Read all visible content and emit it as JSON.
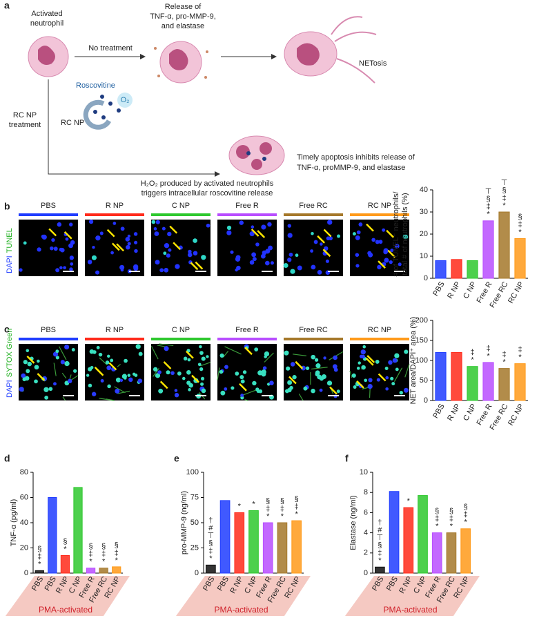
{
  "schematic": {
    "panel_label": "a",
    "activated_neutrophil": [
      "Activated",
      "neutrophil"
    ],
    "no_treatment": "No treatment",
    "release": [
      "Release of",
      "TNF-α, pro-MMP-9,",
      "and elastase"
    ],
    "netosis": "NETosis",
    "rc_np_treatment": [
      "RC NP",
      "treatment"
    ],
    "roscovitine": "Roscovitine",
    "o2": "O₂",
    "rc_np": "RC NP",
    "h2o2": [
      "H₂O₂ produced by activated neutrophils",
      "triggers intracellular roscovitine release"
    ],
    "apoptosis": [
      "Timely apoptosis inhibits release of",
      "TNF-α, proMMP-9, and elastase"
    ]
  },
  "micrographs": [
    {
      "stain_labels": [
        "DAPI",
        "TUNEL"
      ],
      "conditions": [
        "PBS",
        "R NP",
        "C NP",
        "Free R",
        "Free RC",
        "RC NP"
      ],
      "colors": [
        "#1f3cff",
        "#ff2a1a",
        "#2ec82e",
        "#b84dff",
        "#a5782a",
        "#ff9a1a"
      ]
    },
    {
      "stain_labels": [
        "DAPI",
        "SYTOX Green"
      ],
      "conditions": [
        "PBS",
        "R NP",
        "C NP",
        "Free R",
        "Free RC",
        "RC NP"
      ],
      "colors": [
        "#1f3cff",
        "#ff2a1a",
        "#2ec82e",
        "#b84dff",
        "#a5782a",
        "#ff9a1a"
      ]
    }
  ],
  "chart_data": [
    {
      "type": "bar",
      "panel_label": "b",
      "ylabel": [
        "# of TUNEL⁺ neutrophils/",
        "total # of neutrophils (%)"
      ],
      "categories": [
        "PBS",
        "R NP",
        "C NP",
        "Free R",
        "Free RC",
        "RC NP"
      ],
      "colors": [
        "#1f3cff",
        "#ff2a1a",
        "#2ec82e",
        "#b84dff",
        "#a5782a",
        "#ff9a1a"
      ],
      "values": [
        8,
        8.5,
        8,
        26,
        30,
        18
      ],
      "ylim": [
        0,
        40
      ],
      "yticks": [
        0,
        10,
        20,
        30,
        40
      ],
      "annotations": [
        null,
        null,
        null,
        [
          "⊤",
          "§",
          "‡",
          "*"
        ],
        [
          "⊤",
          "§",
          "‡",
          "*"
        ],
        [
          "§",
          "‡",
          "*"
        ]
      ]
    },
    {
      "type": "bar",
      "panel_label": "c",
      "ylabel": [
        "NET area/DAPI⁺ area (%)"
      ],
      "categories": [
        "PBS",
        "R NP",
        "C NP",
        "Free R",
        "Free RC",
        "RC NP"
      ],
      "colors": [
        "#1f3cff",
        "#ff2a1a",
        "#2ec82e",
        "#b84dff",
        "#a5782a",
        "#ff9a1a"
      ],
      "values": [
        120,
        120,
        85,
        95,
        80,
        92
      ],
      "ylim": [
        0,
        200
      ],
      "yticks": [
        0,
        50,
        100,
        150,
        200
      ],
      "annotations": [
        null,
        null,
        [
          "‡",
          "*"
        ],
        [
          "‡",
          "*"
        ],
        [
          "‡",
          "*"
        ],
        [
          "‡",
          "*"
        ]
      ]
    },
    {
      "type": "bar",
      "panel_label": "d",
      "ylabel": [
        "TNF-α (pg/ml)"
      ],
      "group_label": "PMA-activated",
      "categories": [
        "PBS",
        "PBS",
        "R NP",
        "C NP",
        "Free R",
        "Free RC",
        "RC NP"
      ],
      "colors": [
        "#111111",
        "#1f3cff",
        "#ff2a1a",
        "#2ec82e",
        "#b84dff",
        "#a5782a",
        "#ff9a1a"
      ],
      "values": [
        2,
        60,
        14,
        68,
        4,
        4,
        5
      ],
      "ylim": [
        0,
        80
      ],
      "yticks": [
        0,
        20,
        40,
        60,
        80
      ],
      "annotations": [
        [
          "§",
          "‡",
          "*"
        ],
        null,
        [
          "§",
          "*"
        ],
        null,
        [
          "§",
          "‡",
          "*"
        ],
        [
          "§",
          "‡",
          "*"
        ],
        [
          "§",
          "‡",
          "*"
        ]
      ]
    },
    {
      "type": "bar",
      "panel_label": "e",
      "ylabel": [
        "pro-MMP-9 (ng/ml)"
      ],
      "group_label": "PMA-activated",
      "categories": [
        "PBS",
        "PBS",
        "R NP",
        "C NP",
        "Free R",
        "Free RC",
        "RC NP"
      ],
      "colors": [
        "#111111",
        "#1f3cff",
        "#ff2a1a",
        "#2ec82e",
        "#b84dff",
        "#a5782a",
        "#ff9a1a"
      ],
      "values": [
        8,
        72,
        60,
        62,
        50,
        50,
        52
      ],
      "ylim": [
        0,
        100
      ],
      "yticks": [
        0,
        25,
        50,
        75,
        100
      ],
      "annotations": [
        [
          "†",
          "#",
          "⊤",
          "§",
          "‡",
          "*"
        ],
        null,
        [
          "*"
        ],
        [
          "*"
        ],
        [
          "§",
          "‡",
          "*"
        ],
        [
          "§",
          "‡",
          "*"
        ],
        [
          "§",
          "‡",
          "*"
        ]
      ]
    },
    {
      "type": "bar",
      "panel_label": "f",
      "ylabel": [
        "Elastase (ng/ml)"
      ],
      "group_label": "PMA-activated",
      "categories": [
        "PBS",
        "PBS",
        "R NP",
        "C NP",
        "Free R",
        "Free RC",
        "RC NP"
      ],
      "colors": [
        "#111111",
        "#1f3cff",
        "#ff2a1a",
        "#2ec82e",
        "#b84dff",
        "#a5782a",
        "#ff9a1a"
      ],
      "values": [
        0.6,
        8.1,
        6.5,
        7.7,
        4.0,
        4.0,
        4.4
      ],
      "ylim": [
        0,
        10
      ],
      "yticks": [
        0,
        2,
        4,
        6,
        8,
        10
      ],
      "annotations": [
        [
          "†",
          "#",
          "⊤",
          "§",
          "‡",
          "*"
        ],
        null,
        [
          "*"
        ],
        null,
        [
          "§",
          "‡",
          "*"
        ],
        [
          "§",
          "‡",
          "*"
        ],
        [
          "§",
          "‡",
          "*"
        ]
      ]
    }
  ]
}
